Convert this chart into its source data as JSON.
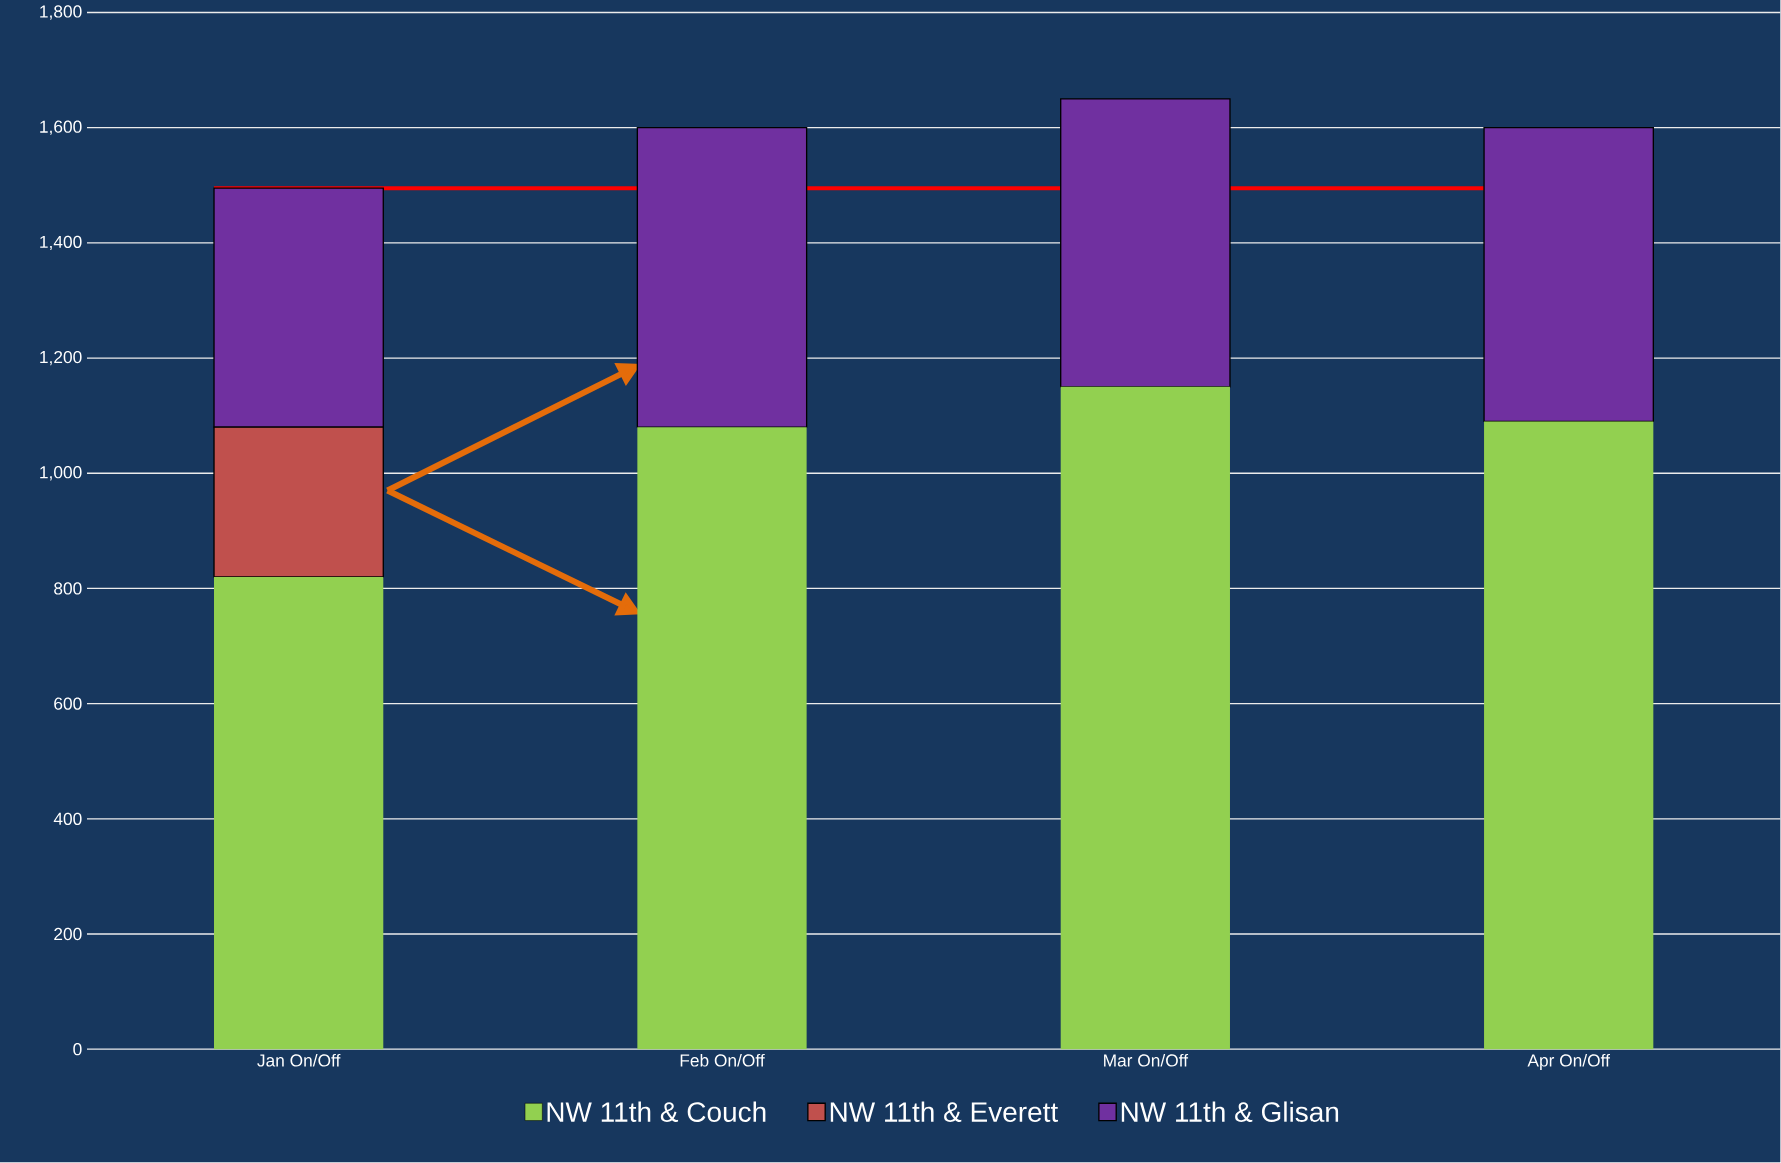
{
  "chart_data": {
    "type": "bar",
    "stacked": true,
    "categories": [
      "Jan On/Off",
      "Feb On/Off",
      "Mar On/Off",
      "Apr On/Off"
    ],
    "series": [
      {
        "name": "NW 11th & Couch",
        "color": "#92d050",
        "values": [
          820,
          1080,
          1150,
          1090
        ]
      },
      {
        "name": "NW 11th & Everett",
        "color": "#c0504d",
        "values": [
          260,
          null,
          null,
          null
        ]
      },
      {
        "name": "NW 11th & Glisan",
        "color": "#7030a0",
        "values": [
          415,
          520,
          500,
          510
        ]
      }
    ],
    "ylim": [
      0,
      1800
    ],
    "yticks": [
      {
        "value": 0,
        "label": "0"
      },
      {
        "value": 200,
        "label": "200"
      },
      {
        "value": 400,
        "label": "400"
      },
      {
        "value": 600,
        "label": "600"
      },
      {
        "value": 800,
        "label": "800"
      },
      {
        "value": 1000,
        "label": "1,000"
      },
      {
        "value": 1200,
        "label": "1,200"
      },
      {
        "value": 1400,
        "label": "1,400"
      },
      {
        "value": 1600,
        "label": "1,600"
      },
      {
        "value": 1800,
        "label": "1,800"
      }
    ],
    "grid": "y",
    "legend": "bottom",
    "ref_lines": [
      {
        "axis": "y",
        "value": 1495,
        "color": "#ff0000"
      }
    ]
  }
}
